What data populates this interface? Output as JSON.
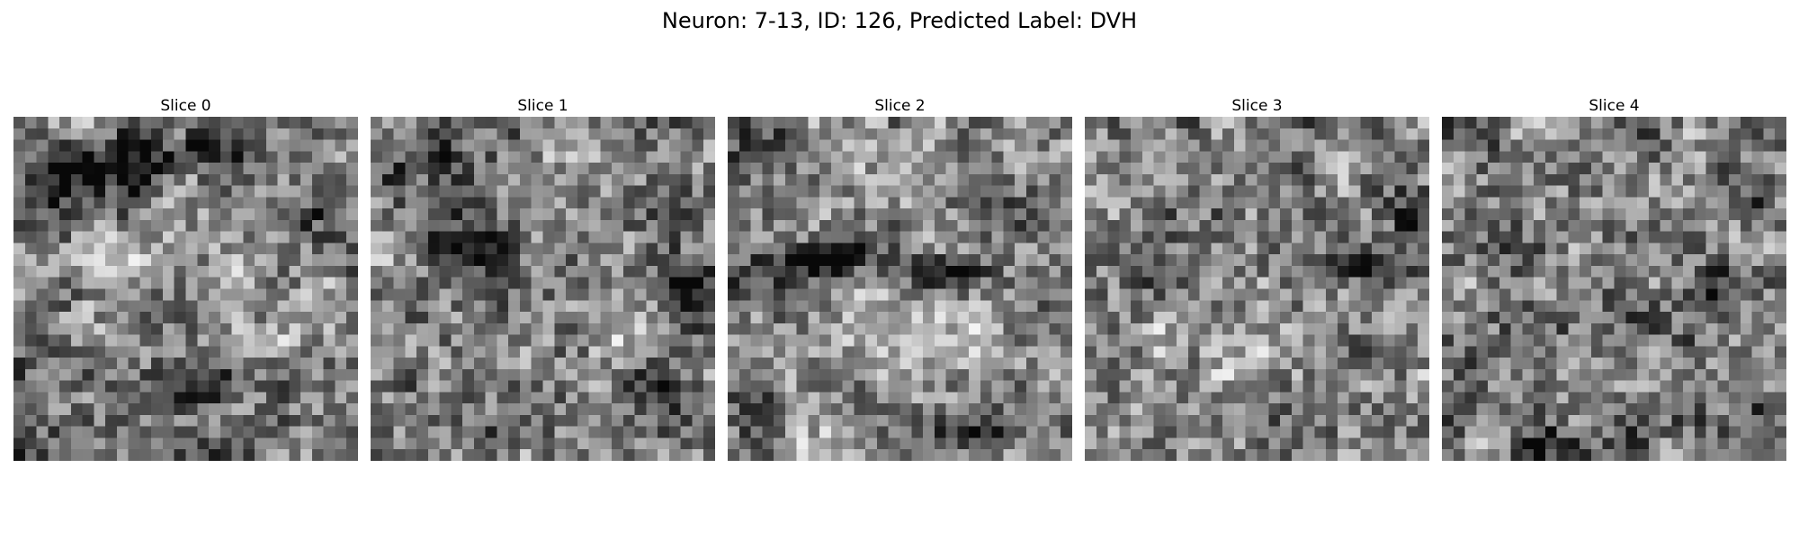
{
  "figure": {
    "title": "Neuron: 7-13, ID: 126, Predicted Label: DVH"
  },
  "colormap": [
    "#000000",
    "#ffffff"
  ],
  "slices": [
    {
      "label": "Slice 0"
    },
    {
      "label": "Slice 1"
    },
    {
      "label": "Slice 2"
    },
    {
      "label": "Slice 3"
    },
    {
      "label": "Slice 4"
    }
  ]
}
